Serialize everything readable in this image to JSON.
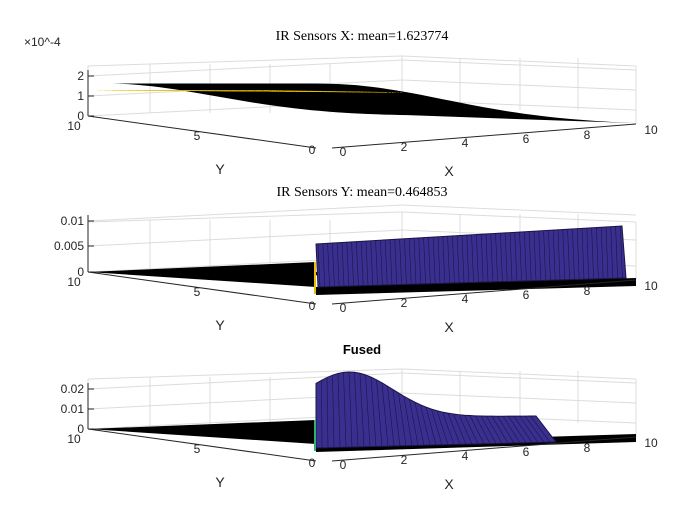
{
  "colors": {
    "background": "#ffffff",
    "surface_dark": "#000000",
    "surface_blue": "#3a2f8f",
    "surface_yellow": "#e6c000",
    "surface_green": "#2db36b",
    "grid": "#dcdcdc",
    "text": "#262626"
  },
  "chart_data": [
    {
      "type": "surface",
      "title": "IR Sensors X: mean=1.623774",
      "xlabel": "X",
      "ylabel": "Y",
      "xlim": [
        0,
        10
      ],
      "ylim": [
        0,
        10
      ],
      "zlim": [
        0,
        0.00025
      ],
      "x_ticks": [
        "0",
        "2",
        "4",
        "6",
        "8",
        "10"
      ],
      "y_ticks": [
        "0",
        "5",
        "10"
      ],
      "z_ticks": [
        "0",
        "1",
        "2"
      ],
      "z_exponent": "×10^-4",
      "grid": true,
      "description_shape": "half-gaussian ridge along X, peak near x=0, z max ~2.2e-4",
      "peak_z": 0.00022,
      "peak_x": 0.5,
      "sigma_x": 3.5
    },
    {
      "type": "surface",
      "title": "IR Sensors Y: mean=0.464853",
      "xlabel": "X",
      "ylabel": "Y",
      "xlim": [
        0,
        10
      ],
      "ylim": [
        0,
        10
      ],
      "zlim": [
        0,
        0.01
      ],
      "x_ticks": [
        "0",
        "2",
        "4",
        "6",
        "8",
        "10"
      ],
      "y_ticks": [
        "0",
        "5",
        "10"
      ],
      "z_ticks": [
        "0",
        "0.005",
        "0.01"
      ],
      "grid": true,
      "peak_z": 0.0095
    },
    {
      "type": "surface",
      "title": "Fused",
      "xlabel": "X",
      "ylabel": "Y",
      "xlim": [
        0,
        10
      ],
      "ylim": [
        0,
        10
      ],
      "zlim": [
        0,
        0.025
      ],
      "x_ticks": [
        "0",
        "2",
        "4",
        "6",
        "8",
        "10"
      ],
      "y_ticks": [
        "0",
        "5",
        "10"
      ],
      "z_ticks": [
        "0",
        "0.01",
        "0.02"
      ],
      "grid": true,
      "peak_z": 0.022,
      "peak_x": 1.5,
      "sigma_x": 2.0
    }
  ]
}
